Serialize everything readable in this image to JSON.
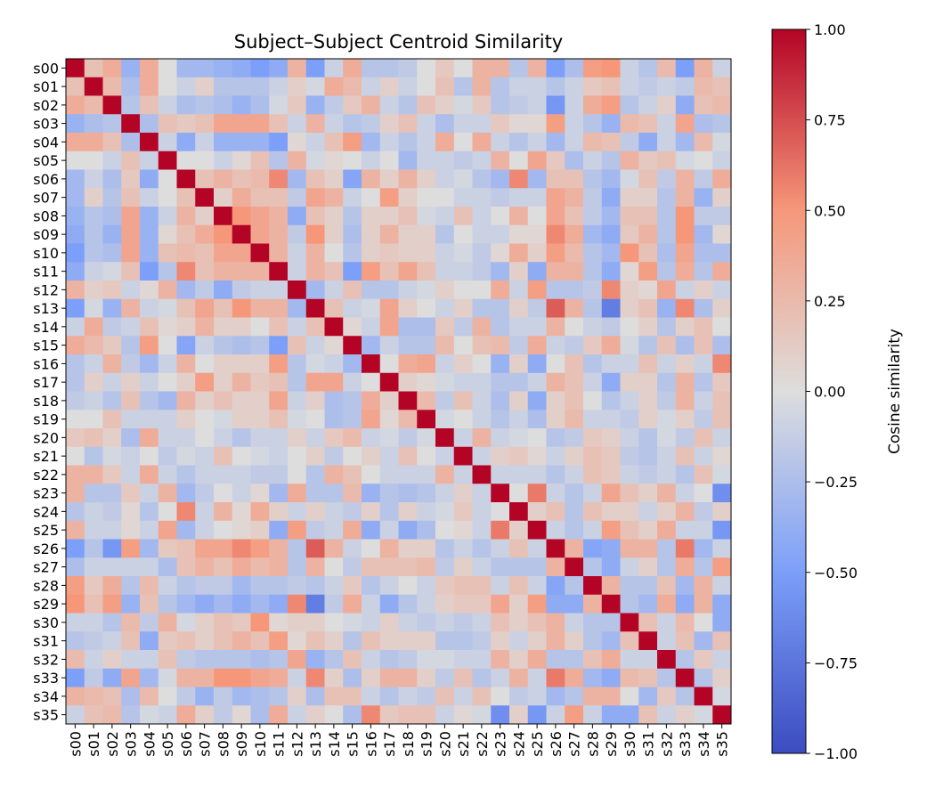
{
  "chart_data": {
    "type": "heatmap",
    "title": "Subject–Subject Centroid Similarity",
    "labels": [
      "s00",
      "s01",
      "s02",
      "s03",
      "s04",
      "s05",
      "s06",
      "s07",
      "s08",
      "s09",
      "s10",
      "s11",
      "s12",
      "s13",
      "s14",
      "s15",
      "s16",
      "s17",
      "s18",
      "s19",
      "s20",
      "s21",
      "s22",
      "s23",
      "s24",
      "s25",
      "s26",
      "s27",
      "s28",
      "s29",
      "s30",
      "s31",
      "s32",
      "s33",
      "s34",
      "s35"
    ],
    "colorbar": {
      "label": "Cosine similarity",
      "vmin": -1.0,
      "vmax": 1.0,
      "ticks": [
        1.0,
        0.75,
        0.5,
        0.25,
        0.0,
        -0.25,
        -0.5,
        -0.75,
        -1.0
      ],
      "tick_labels": [
        "1.00",
        "0.75",
        "0.50",
        "0.25",
        "0.00",
        "−0.25",
        "−0.50",
        "−0.75",
        "−1.00"
      ],
      "colormap": "coolwarm"
    },
    "matrix": [
      [
        1.0,
        0.2,
        0.35,
        -0.35,
        0.35,
        0.0,
        -0.3,
        -0.3,
        -0.35,
        -0.4,
        -0.5,
        -0.4,
        0.3,
        -0.5,
        -0.1,
        0.35,
        -0.2,
        -0.2,
        -0.15,
        0.0,
        0.15,
        0.0,
        0.3,
        0.3,
        -0.2,
        0.3,
        -0.5,
        -0.25,
        0.45,
        0.5,
        -0.1,
        -0.2,
        0.25,
        -0.5,
        0.3,
        -0.1
      ],
      [
        0.2,
        1.0,
        0.25,
        -0.25,
        0.35,
        0.0,
        -0.1,
        0.1,
        -0.2,
        -0.2,
        -0.2,
        -0.1,
        0.1,
        -0.05,
        0.35,
        0.25,
        -0.1,
        0.1,
        -0.1,
        0.0,
        0.2,
        -0.2,
        0.3,
        -0.2,
        -0.1,
        -0.1,
        -0.2,
        -0.1,
        0.15,
        0.2,
        -0.1,
        -0.15,
        -0.1,
        -0.15,
        0.25,
        0.2
      ],
      [
        0.35,
        0.25,
        1.0,
        -0.2,
        0.2,
        -0.1,
        -0.25,
        -0.2,
        -0.25,
        -0.35,
        -0.25,
        -0.05,
        0.15,
        -0.35,
        -0.15,
        0.15,
        0.3,
        -0.1,
        -0.2,
        0.2,
        0.1,
        -0.05,
        0.15,
        -0.2,
        -0.15,
        -0.1,
        -0.55,
        -0.1,
        0.35,
        0.45,
        -0.2,
        -0.1,
        0.1,
        -0.4,
        0.2,
        0.25
      ],
      [
        -0.35,
        -0.25,
        -0.2,
        1.0,
        -0.25,
        0.2,
        0.15,
        0.2,
        0.4,
        0.4,
        0.4,
        0.2,
        -0.1,
        0.3,
        -0.1,
        -0.2,
        -0.15,
        0.1,
        0.2,
        -0.1,
        -0.25,
        -0.1,
        -0.1,
        0.15,
        0.05,
        0.05,
        0.45,
        -0.1,
        -0.2,
        -0.35,
        0.25,
        0.2,
        -0.1,
        0.4,
        -0.25,
        -0.2
      ],
      [
        0.35,
        0.35,
        0.2,
        -0.25,
        1.0,
        -0.1,
        -0.4,
        -0.1,
        -0.35,
        -0.35,
        -0.35,
        -0.5,
        0.05,
        -0.1,
        0.2,
        0.45,
        -0.3,
        -0.1,
        -0.2,
        -0.1,
        0.35,
        0.0,
        0.35,
        -0.1,
        -0.2,
        -0.1,
        -0.3,
        -0.1,
        0.25,
        0.2,
        -0.15,
        -0.4,
        -0.1,
        -0.3,
        0.25,
        -0.05
      ],
      [
        0.0,
        0.0,
        -0.1,
        0.2,
        -0.1,
        1.0,
        0.0,
        0.0,
        -0.1,
        0.05,
        0.2,
        -0.2,
        0.3,
        -0.05,
        0.05,
        0.0,
        -0.1,
        0.0,
        -0.3,
        -0.1,
        -0.1,
        -0.15,
        -0.1,
        0.3,
        0.0,
        0.4,
        0.15,
        -0.25,
        -0.1,
        -0.2,
        0.3,
        0.15,
        0.2,
        -0.05,
        0.0,
        -0.1
      ],
      [
        -0.3,
        -0.1,
        -0.25,
        0.15,
        -0.4,
        0.0,
        1.0,
        0.2,
        0.3,
        0.2,
        0.25,
        0.55,
        -0.3,
        0.2,
        0.1,
        -0.45,
        0.3,
        0.1,
        0.3,
        0.1,
        -0.1,
        -0.05,
        -0.2,
        -0.3,
        0.55,
        -0.3,
        0.2,
        0.2,
        -0.2,
        -0.3,
        -0.05,
        0.2,
        -0.15,
        0.3,
        -0.15,
        0.35
      ],
      [
        -0.3,
        0.1,
        -0.2,
        0.2,
        -0.1,
        0.0,
        0.2,
        1.0,
        0.1,
        0.35,
        0.2,
        0.2,
        -0.15,
        0.4,
        0.3,
        -0.1,
        0.0,
        0.45,
        0.1,
        0.0,
        0.0,
        -0.1,
        -0.1,
        -0.15,
        -0.1,
        -0.1,
        0.4,
        0.3,
        -0.15,
        -0.4,
        0.1,
        0.1,
        -0.2,
        0.3,
        -0.35,
        0.1
      ],
      [
        -0.35,
        -0.2,
        -0.25,
        0.4,
        -0.35,
        -0.1,
        0.3,
        0.1,
        1.0,
        0.5,
        0.4,
        0.3,
        -0.4,
        0.2,
        0.1,
        -0.2,
        0.1,
        0.1,
        0.2,
        -0.05,
        -0.1,
        0.2,
        -0.1,
        0.0,
        0.3,
        0.0,
        0.4,
        0.2,
        -0.15,
        -0.3,
        0.2,
        0.2,
        -0.2,
        0.5,
        -0.15,
        -0.15
      ],
      [
        -0.4,
        -0.2,
        -0.35,
        0.4,
        -0.35,
        0.05,
        0.2,
        0.35,
        0.5,
        1.0,
        0.4,
        0.3,
        -0.15,
        0.5,
        0.1,
        -0.25,
        0.1,
        0.3,
        0.1,
        0.1,
        -0.2,
        0.0,
        -0.1,
        -0.1,
        0.05,
        0.05,
        0.55,
        0.35,
        -0.3,
        -0.4,
        0.15,
        0.3,
        -0.2,
        0.5,
        -0.3,
        0.05
      ],
      [
        -0.5,
        -0.2,
        -0.25,
        0.4,
        -0.35,
        0.2,
        0.25,
        0.2,
        0.4,
        0.4,
        1.0,
        0.3,
        -0.1,
        0.3,
        0.0,
        -0.2,
        0.1,
        0.15,
        0.1,
        0.1,
        -0.1,
        -0.05,
        -0.15,
        0.05,
        0.35,
        0.1,
        0.45,
        0.25,
        -0.2,
        -0.3,
        0.5,
        0.2,
        -0.25,
        0.4,
        -0.25,
        -0.25
      ],
      [
        -0.4,
        -0.1,
        -0.05,
        0.2,
        -0.5,
        -0.2,
        0.55,
        0.2,
        0.3,
        0.3,
        0.3,
        1.0,
        -0.1,
        0.3,
        0.2,
        -0.5,
        0.45,
        0.2,
        0.4,
        0.2,
        -0.1,
        -0.1,
        -0.15,
        -0.3,
        0.1,
        -0.4,
        0.3,
        0.3,
        -0.2,
        -0.4,
        0.05,
        0.45,
        -0.2,
        0.35,
        -0.2,
        0.35
      ],
      [
        0.3,
        0.1,
        0.15,
        -0.1,
        0.05,
        0.3,
        -0.3,
        -0.15,
        -0.4,
        -0.15,
        -0.1,
        -0.1,
        1.0,
        -0.3,
        -0.1,
        0.2,
        -0.2,
        -0.2,
        -0.1,
        -0.05,
        0.1,
        0.0,
        0.0,
        0.35,
        -0.1,
        0.45,
        -0.2,
        -0.2,
        -0.15,
        0.55,
        0.1,
        0.05,
        0.4,
        -0.1,
        0.1,
        -0.1
      ],
      [
        -0.5,
        -0.05,
        -0.35,
        0.3,
        -0.1,
        -0.05,
        0.2,
        0.4,
        0.2,
        0.5,
        0.3,
        0.3,
        -0.3,
        1.0,
        0.2,
        -0.1,
        -0.05,
        0.4,
        0.1,
        0.0,
        -0.1,
        0.1,
        -0.2,
        -0.2,
        0.1,
        -0.15,
        0.7,
        0.3,
        -0.2,
        -0.7,
        0.1,
        0.2,
        -0.35,
        0.55,
        -0.25,
        0.1
      ],
      [
        -0.1,
        0.35,
        -0.15,
        -0.1,
        0.2,
        0.05,
        0.1,
        0.3,
        0.1,
        0.1,
        0.0,
        0.2,
        -0.1,
        0.2,
        1.0,
        0.05,
        -0.1,
        0.4,
        -0.25,
        -0.25,
        0.15,
        -0.15,
        0.3,
        -0.2,
        -0.1,
        -0.1,
        0.3,
        0.0,
        -0.1,
        -0.15,
        0.0,
        0.1,
        -0.2,
        0.1,
        0.2,
        0.0
      ],
      [
        0.35,
        0.25,
        0.15,
        -0.2,
        0.45,
        0.0,
        -0.45,
        -0.1,
        -0.2,
        -0.25,
        -0.2,
        -0.5,
        0.2,
        -0.1,
        0.05,
        1.0,
        -0.3,
        -0.1,
        -0.2,
        -0.2,
        0.25,
        0.0,
        0.2,
        0.25,
        -0.15,
        0.35,
        -0.1,
        -0.15,
        0.15,
        0.35,
        -0.05,
        -0.2,
        0.2,
        -0.25,
        0.2,
        -0.25
      ],
      [
        -0.2,
        -0.1,
        0.3,
        -0.15,
        -0.3,
        -0.1,
        0.3,
        0.0,
        0.1,
        0.1,
        0.1,
        0.45,
        -0.2,
        -0.05,
        -0.1,
        -0.3,
        1.0,
        0.0,
        0.35,
        0.4,
        -0.1,
        0.1,
        0.0,
        -0.35,
        0.1,
        -0.4,
        0.0,
        0.2,
        -0.2,
        -0.1,
        -0.1,
        0.2,
        -0.1,
        0.1,
        -0.1,
        0.55
      ],
      [
        -0.2,
        0.1,
        -0.1,
        0.1,
        -0.1,
        0.0,
        0.1,
        0.45,
        0.1,
        0.3,
        0.15,
        0.2,
        -0.2,
        0.4,
        0.4,
        -0.1,
        0.0,
        1.0,
        0.1,
        0.05,
        -0.05,
        -0.1,
        -0.1,
        -0.2,
        -0.2,
        -0.1,
        0.3,
        0.2,
        -0.1,
        -0.4,
        0.1,
        0.1,
        -0.2,
        0.3,
        -0.2,
        0.15
      ],
      [
        -0.15,
        -0.1,
        -0.2,
        0.2,
        -0.2,
        -0.3,
        0.3,
        0.1,
        0.2,
        0.1,
        0.1,
        0.4,
        -0.1,
        0.1,
        -0.25,
        -0.2,
        0.35,
        0.1,
        1.0,
        0.25,
        -0.15,
        0.2,
        -0.1,
        -0.25,
        0.1,
        -0.4,
        0.1,
        0.2,
        0.0,
        -0.2,
        -0.1,
        0.1,
        -0.15,
        0.3,
        -0.1,
        0.2
      ],
      [
        0.0,
        0.0,
        0.2,
        -0.1,
        -0.1,
        -0.1,
        0.1,
        0.0,
        -0.05,
        0.1,
        0.1,
        0.2,
        -0.05,
        0.0,
        -0.25,
        -0.2,
        0.4,
        0.05,
        0.25,
        1.0,
        -0.05,
        0.0,
        -0.1,
        -0.2,
        -0.1,
        -0.25,
        0.1,
        0.25,
        -0.1,
        -0.1,
        -0.15,
        0.1,
        -0.05,
        0.1,
        -0.15,
        0.2
      ],
      [
        0.15,
        0.2,
        0.1,
        -0.25,
        0.35,
        -0.1,
        -0.1,
        0.0,
        -0.1,
        -0.2,
        -0.1,
        -0.1,
        0.1,
        -0.1,
        0.15,
        0.25,
        -0.1,
        -0.05,
        -0.15,
        -0.05,
        1.0,
        -0.1,
        0.3,
        -0.1,
        -0.05,
        0.0,
        -0.2,
        -0.15,
        0.15,
        0.1,
        -0.1,
        -0.2,
        -0.05,
        -0.15,
        0.2,
        -0.1
      ],
      [
        0.0,
        -0.2,
        -0.05,
        -0.1,
        0.0,
        -0.15,
        -0.05,
        -0.1,
        0.2,
        0.0,
        -0.05,
        -0.1,
        0.0,
        0.1,
        -0.15,
        0.0,
        0.1,
        -0.1,
        0.2,
        0.0,
        -0.1,
        1.0,
        -0.1,
        0.1,
        0.15,
        0.05,
        -0.1,
        0.1,
        0.2,
        0.15,
        -0.15,
        -0.2,
        -0.1,
        0.2,
        -0.1,
        0.05
      ],
      [
        0.3,
        0.3,
        0.15,
        -0.1,
        0.35,
        -0.1,
        -0.2,
        -0.1,
        -0.1,
        -0.1,
        -0.15,
        -0.15,
        0.0,
        -0.2,
        0.3,
        0.2,
        0.0,
        -0.1,
        -0.1,
        -0.1,
        0.3,
        -0.1,
        1.0,
        -0.1,
        -0.1,
        -0.1,
        -0.2,
        -0.1,
        0.2,
        0.15,
        -0.1,
        -0.15,
        -0.1,
        -0.2,
        0.2,
        -0.05
      ],
      [
        0.3,
        -0.2,
        -0.2,
        0.15,
        -0.1,
        0.3,
        -0.3,
        -0.15,
        0.0,
        -0.1,
        0.05,
        -0.3,
        0.35,
        -0.2,
        -0.2,
        0.25,
        -0.35,
        -0.2,
        -0.25,
        -0.2,
        -0.1,
        0.1,
        -0.1,
        1.0,
        0.0,
        0.6,
        -0.1,
        -0.2,
        -0.1,
        0.4,
        0.2,
        0.1,
        0.3,
        -0.1,
        0.0,
        -0.6
      ],
      [
        -0.2,
        -0.1,
        -0.15,
        0.05,
        -0.2,
        0.0,
        0.55,
        -0.1,
        0.3,
        0.05,
        0.35,
        0.1,
        -0.1,
        0.1,
        -0.1,
        -0.15,
        0.1,
        -0.2,
        0.1,
        -0.1,
        -0.05,
        0.15,
        -0.1,
        0.0,
        1.0,
        0.1,
        0.2,
        -0.2,
        0.2,
        0.1,
        0.1,
        -0.1,
        0.1,
        0.3,
        -0.15,
        0.1
      ],
      [
        0.3,
        -0.1,
        -0.1,
        0.05,
        -0.1,
        0.4,
        -0.3,
        -0.1,
        0.0,
        0.05,
        0.1,
        -0.4,
        0.45,
        -0.15,
        -0.1,
        0.35,
        -0.4,
        -0.1,
        -0.4,
        -0.25,
        0.0,
        0.05,
        -0.1,
        0.6,
        0.1,
        1.0,
        -0.1,
        -0.2,
        -0.1,
        0.45,
        0.2,
        0.1,
        0.35,
        -0.1,
        -0.1,
        -0.55
      ],
      [
        -0.5,
        -0.2,
        -0.55,
        0.45,
        -0.3,
        0.15,
        0.2,
        0.4,
        0.4,
        0.55,
        0.45,
        0.3,
        -0.2,
        0.7,
        0.3,
        -0.1,
        0.0,
        0.3,
        0.1,
        0.1,
        -0.2,
        -0.1,
        -0.2,
        -0.1,
        0.2,
        -0.1,
        1.0,
        0.3,
        -0.45,
        -0.4,
        0.3,
        0.3,
        -0.2,
        0.6,
        -0.3,
        -0.1
      ],
      [
        -0.25,
        -0.1,
        -0.1,
        -0.1,
        -0.1,
        -0.25,
        0.2,
        0.3,
        0.2,
        0.35,
        0.25,
        0.3,
        -0.2,
        0.3,
        0.0,
        -0.15,
        0.2,
        0.2,
        0.2,
        0.25,
        -0.15,
        0.1,
        -0.1,
        -0.2,
        -0.2,
        -0.2,
        0.3,
        1.0,
        -0.2,
        -0.4,
        -0.1,
        0.1,
        -0.2,
        0.35,
        -0.2,
        0.45
      ],
      [
        0.45,
        0.15,
        0.35,
        -0.2,
        0.25,
        -0.1,
        -0.2,
        -0.15,
        -0.15,
        -0.3,
        -0.2,
        -0.2,
        -0.15,
        -0.2,
        -0.1,
        0.15,
        -0.2,
        -0.1,
        0.0,
        -0.1,
        0.15,
        0.2,
        0.2,
        -0.1,
        0.2,
        -0.1,
        -0.45,
        -0.2,
        1.0,
        0.3,
        -0.2,
        -0.2,
        0.2,
        -0.3,
        0.3,
        -0.1
      ],
      [
        0.5,
        0.2,
        0.45,
        -0.35,
        0.2,
        -0.2,
        -0.3,
        -0.4,
        -0.3,
        -0.4,
        -0.3,
        -0.4,
        0.55,
        -0.7,
        -0.15,
        0.35,
        -0.1,
        -0.4,
        -0.2,
        -0.1,
        0.1,
        0.15,
        0.15,
        0.4,
        0.1,
        0.45,
        -0.4,
        -0.4,
        0.3,
        1.0,
        -0.2,
        -0.3,
        0.35,
        -0.4,
        0.3,
        -0.4
      ],
      [
        -0.1,
        -0.1,
        -0.2,
        0.25,
        -0.15,
        0.3,
        -0.05,
        0.1,
        0.2,
        0.15,
        0.5,
        0.05,
        0.1,
        0.1,
        0.0,
        -0.05,
        -0.1,
        0.1,
        -0.1,
        -0.15,
        -0.1,
        -0.15,
        -0.1,
        0.2,
        0.1,
        0.2,
        0.3,
        -0.1,
        -0.2,
        -0.2,
        1.0,
        0.2,
        -0.1,
        0.25,
        0.0,
        -0.4
      ],
      [
        -0.2,
        -0.15,
        -0.1,
        0.2,
        -0.4,
        0.15,
        0.2,
        0.1,
        0.2,
        0.3,
        0.2,
        0.45,
        0.05,
        0.2,
        0.1,
        -0.2,
        0.2,
        0.1,
        0.1,
        0.1,
        -0.2,
        -0.2,
        -0.15,
        0.1,
        -0.1,
        0.1,
        0.3,
        0.1,
        -0.2,
        -0.3,
        0.2,
        1.0,
        -0.1,
        0.2,
        -0.3,
        0.2
      ],
      [
        0.25,
        -0.1,
        0.1,
        -0.1,
        -0.1,
        0.2,
        -0.15,
        -0.2,
        -0.2,
        -0.2,
        -0.25,
        -0.2,
        0.4,
        -0.35,
        -0.2,
        0.2,
        -0.1,
        -0.2,
        -0.15,
        -0.05,
        -0.05,
        -0.1,
        -0.1,
        0.3,
        0.1,
        0.35,
        -0.2,
        -0.2,
        0.2,
        0.35,
        -0.1,
        -0.1,
        1.0,
        -0.2,
        0.15,
        -0.1
      ],
      [
        -0.5,
        -0.15,
        -0.4,
        0.4,
        -0.3,
        -0.05,
        0.3,
        0.3,
        0.5,
        0.5,
        0.4,
        0.35,
        -0.1,
        0.55,
        0.1,
        -0.25,
        0.1,
        0.3,
        0.3,
        0.1,
        -0.15,
        0.2,
        -0.2,
        -0.1,
        0.3,
        -0.1,
        0.6,
        0.35,
        -0.3,
        -0.4,
        0.25,
        0.2,
        -0.2,
        1.0,
        -0.2,
        0.1
      ],
      [
        0.3,
        0.25,
        0.2,
        -0.25,
        0.25,
        0.0,
        -0.15,
        -0.35,
        -0.15,
        -0.3,
        -0.25,
        -0.2,
        0.1,
        -0.25,
        0.2,
        0.2,
        -0.1,
        -0.2,
        -0.1,
        -0.15,
        0.2,
        -0.1,
        0.2,
        0.0,
        -0.15,
        -0.1,
        -0.3,
        -0.2,
        0.3,
        0.3,
        0.0,
        -0.3,
        0.15,
        -0.2,
        1.0,
        -0.05
      ],
      [
        -0.1,
        0.2,
        0.25,
        -0.2,
        -0.05,
        -0.1,
        0.35,
        0.1,
        -0.15,
        0.05,
        -0.25,
        0.35,
        -0.1,
        0.1,
        0.0,
        -0.25,
        0.55,
        0.15,
        0.2,
        0.2,
        -0.1,
        0.05,
        -0.05,
        -0.6,
        0.1,
        -0.55,
        -0.1,
        0.45,
        -0.1,
        -0.4,
        -0.4,
        0.2,
        -0.1,
        0.1,
        -0.05,
        1.0
      ]
    ]
  }
}
